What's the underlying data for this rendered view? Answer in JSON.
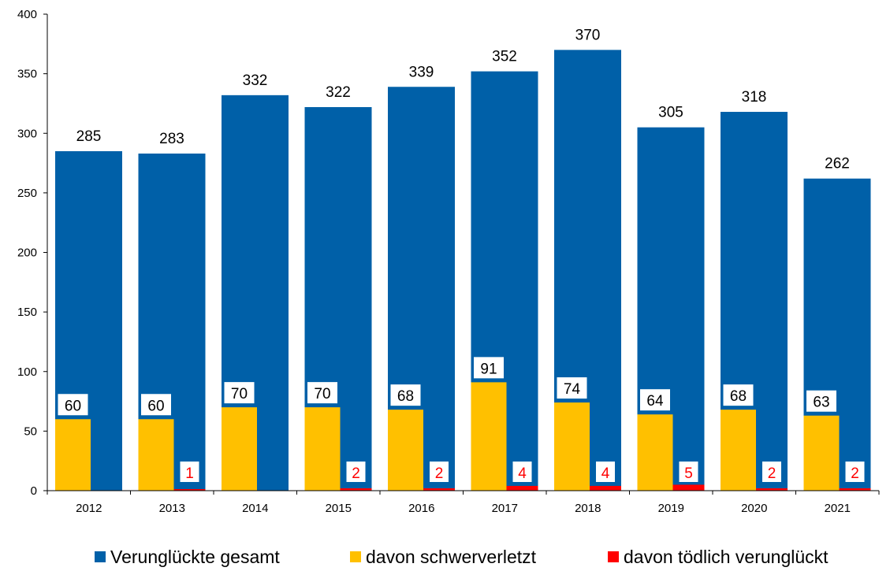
{
  "chart_data": {
    "type": "bar",
    "categories": [
      "2012",
      "2013",
      "2014",
      "2015",
      "2016",
      "2017",
      "2018",
      "2019",
      "2020",
      "2021"
    ],
    "series": [
      {
        "name": "Verunglückte gesamt",
        "color": "#0060A8",
        "values": [
          285,
          283,
          332,
          322,
          339,
          352,
          370,
          305,
          318,
          262
        ]
      },
      {
        "name": "davon schwerverletzt",
        "color": "#FFC000",
        "values": [
          60,
          60,
          70,
          70,
          68,
          91,
          74,
          64,
          68,
          63
        ]
      },
      {
        "name": "davon tödlich verunglückt",
        "color": "#FF0000",
        "values": [
          null,
          1,
          null,
          2,
          2,
          4,
          4,
          5,
          2,
          2
        ]
      }
    ],
    "ylim": [
      0,
      400
    ],
    "yticks": [
      "0",
      "50",
      "100",
      "150",
      "200",
      "250",
      "300",
      "350",
      "400"
    ],
    "grid": false,
    "legend_position": "bottom"
  }
}
